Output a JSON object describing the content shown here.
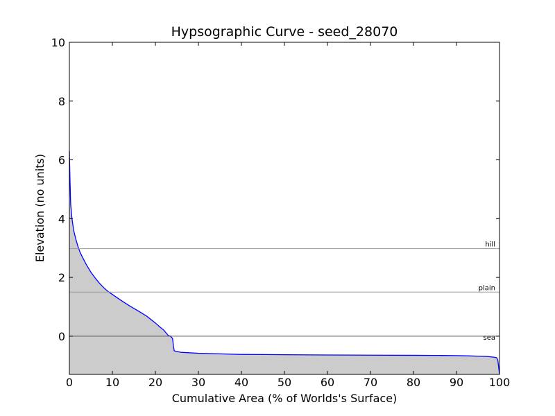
{
  "chart_data": {
    "type": "area",
    "title": "Hypsographic Curve - seed_28070",
    "xlabel": "Cumulative Area (% of Worlds's Surface)",
    "ylabel": "Elevation (no units)",
    "xlim": [
      0,
      100
    ],
    "ylim": [
      -1.3,
      10
    ],
    "xticks": [
      0,
      10,
      20,
      30,
      40,
      50,
      60,
      70,
      80,
      90,
      100
    ],
    "yticks": [
      0,
      2,
      4,
      6,
      8,
      10
    ],
    "grid": false,
    "fill_color": "#cccccc",
    "line_color": "#0000ff",
    "series": [
      {
        "x": [
          0,
          0.15,
          0.3,
          0.6,
          1,
          1.5,
          2,
          2.5,
          3,
          4,
          5,
          6,
          7,
          8,
          9,
          10,
          12,
          14,
          16,
          18,
          20,
          21,
          22,
          22.5,
          23,
          23.5,
          24,
          24.2,
          24.4,
          26,
          30,
          40,
          50,
          60,
          70,
          80,
          86,
          90,
          93,
          95,
          97,
          98.5,
          99.3,
          99.6,
          99.8,
          100
        ],
        "y": [
          6.3,
          5.3,
          4.5,
          4.0,
          3.6,
          3.3,
          3.05,
          2.85,
          2.7,
          2.42,
          2.18,
          1.98,
          1.8,
          1.65,
          1.52,
          1.42,
          1.22,
          1.03,
          0.86,
          0.68,
          0.45,
          0.32,
          0.2,
          0.11,
          0.02,
          0.0,
          -0.08,
          -0.35,
          -0.5,
          -0.55,
          -0.58,
          -0.62,
          -0.63,
          -0.64,
          -0.645,
          -0.65,
          -0.655,
          -0.66,
          -0.67,
          -0.68,
          -0.69,
          -0.71,
          -0.73,
          -0.8,
          -1.05,
          -1.3
        ]
      }
    ],
    "reference_lines": [
      {
        "label": "hill",
        "y": 2.98,
        "color": "#999999"
      },
      {
        "label": "plain",
        "y": 1.5,
        "color": "#999999"
      },
      {
        "label": "sea",
        "y": 0,
        "color": "#555555"
      }
    ]
  }
}
